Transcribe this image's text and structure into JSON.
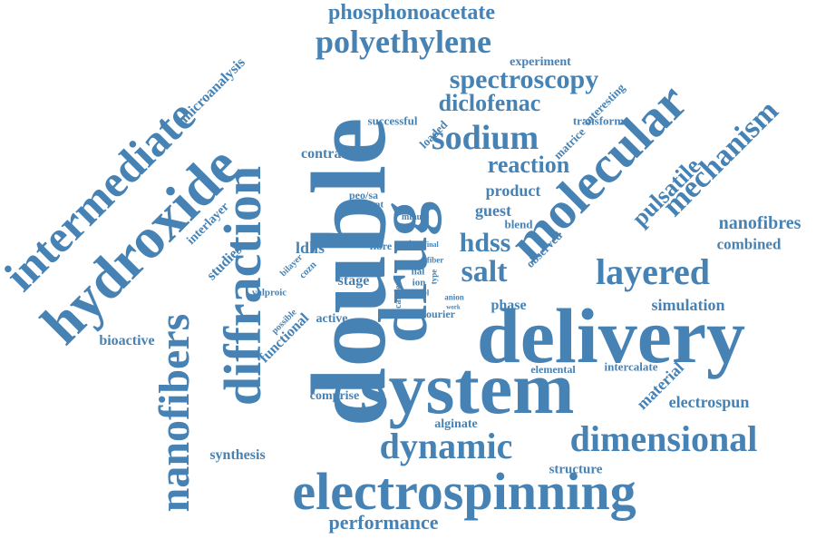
{
  "style": {
    "word_color": "#4682b4",
    "background": "#ffffff"
  },
  "words": [
    "double",
    "delivery",
    "system",
    "drug",
    "molecular",
    "electrospinning",
    "hydroxide",
    "diffraction",
    "nanofibers",
    "intermediate",
    "dynamic",
    "dimensional",
    "layered",
    "polyethylene",
    "sodium",
    "spectroscopy",
    "mechanism",
    "phosphonoacetate",
    "diclofenac",
    "reaction",
    "salt",
    "hdss",
    "pulsatile",
    "performance",
    "nanofibres",
    "combined",
    "simulation",
    "electrospun",
    "material",
    "structure",
    "synthesis",
    "alginate",
    "microanalysis",
    "bioactive",
    "product",
    "guest",
    "ldhs",
    "studies",
    "interlayer",
    "functional",
    "contrast",
    "successful",
    "loaded",
    "stage",
    "active",
    "phase",
    "intercalate",
    "elemental",
    "comprise",
    "experiment",
    "interesting",
    "transform",
    "matrice",
    "observed",
    "blend",
    "fourier",
    "agent",
    "fibre",
    "peo/sa",
    "amount",
    "minute",
    "time",
    "final",
    "lial",
    "ion",
    "carrier",
    "novel",
    "anion",
    "work",
    "fiber",
    "type",
    "bilayer",
    "cozn",
    "possible",
    "valproic"
  ]
}
